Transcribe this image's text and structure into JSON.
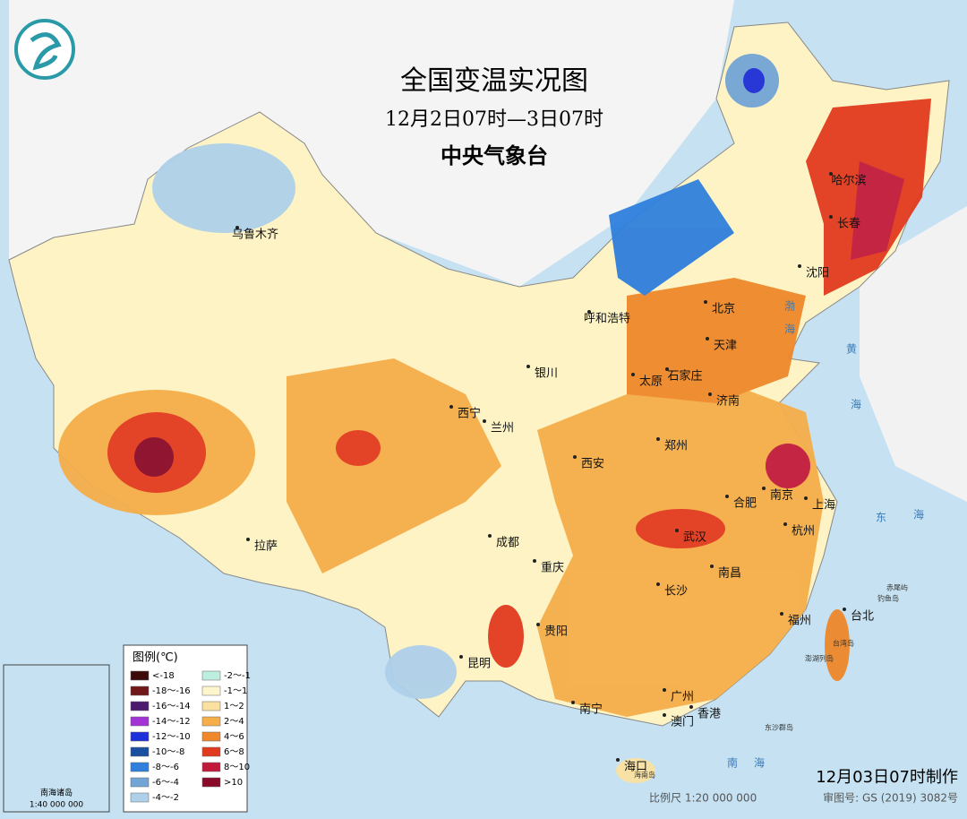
{
  "header": {
    "title": "全国变温实况图",
    "subtitle": "12月2日07时—3日07时",
    "org": "中央气象台"
  },
  "cities": [
    "乌鲁木齐",
    "哈尔滨",
    "长春",
    "沈阳",
    "呼和浩特",
    "北京",
    "天津",
    "石家庄",
    "太原",
    "济南",
    "银川",
    "西宁",
    "兰州",
    "郑州",
    "西安",
    "南京",
    "合肥",
    "上海",
    "杭州",
    "武汉",
    "成都",
    "拉萨",
    "重庆",
    "南昌",
    "长沙",
    "福州",
    "台北",
    "贵阳",
    "昆明",
    "广州",
    "南宁",
    "香港",
    "澳门",
    "海口"
  ],
  "seas": [
    "渤",
    "海",
    "黄",
    "海",
    "东",
    "海",
    "南",
    "海"
  ],
  "islands": [
    "台湾岛",
    "海南岛",
    "钓鱼岛",
    "赤尾屿",
    "东沙群岛",
    "澎湖列岛"
  ],
  "legend": {
    "title": "图例(℃)",
    "items": [
      {
        "label": "<-18",
        "color": "#3d0a0a"
      },
      {
        "label": "-18～-16",
        "color": "#701818"
      },
      {
        "label": "-16～-14",
        "color": "#4b1a6e"
      },
      {
        "label": "-14～-12",
        "color": "#a433d6"
      },
      {
        "label": "-12～-10",
        "color": "#1d2fd8"
      },
      {
        "label": "-10～-8",
        "color": "#1b4fa0"
      },
      {
        "label": "-8～-6",
        "color": "#2f7fdc"
      },
      {
        "label": "-6～-4",
        "color": "#72a5d6"
      },
      {
        "label": "-4～-2",
        "color": "#aed0ea"
      },
      {
        "label": "-2～-1",
        "color": "#bdeee0"
      },
      {
        "label": "-1～1",
        "color": "#fdf6cc"
      },
      {
        "label": "1～2",
        "color": "#fae1a0"
      },
      {
        "label": "2～4",
        "color": "#f5ae4a"
      },
      {
        "label": "4～6",
        "color": "#ee882a"
      },
      {
        "label": "6～8",
        "color": "#e23a1e"
      },
      {
        "label": "8～10",
        "color": "#c21a3c"
      },
      {
        "label": ">10",
        "color": "#8a0a2a"
      }
    ]
  },
  "inset": {
    "title": "南海诸岛",
    "scale": "1:40 000 000"
  },
  "footer": {
    "made": "12月03日07时制作",
    "scale": "比例尺 1:20 000 000",
    "approval": "审图号: GS (2019) 3082号"
  }
}
